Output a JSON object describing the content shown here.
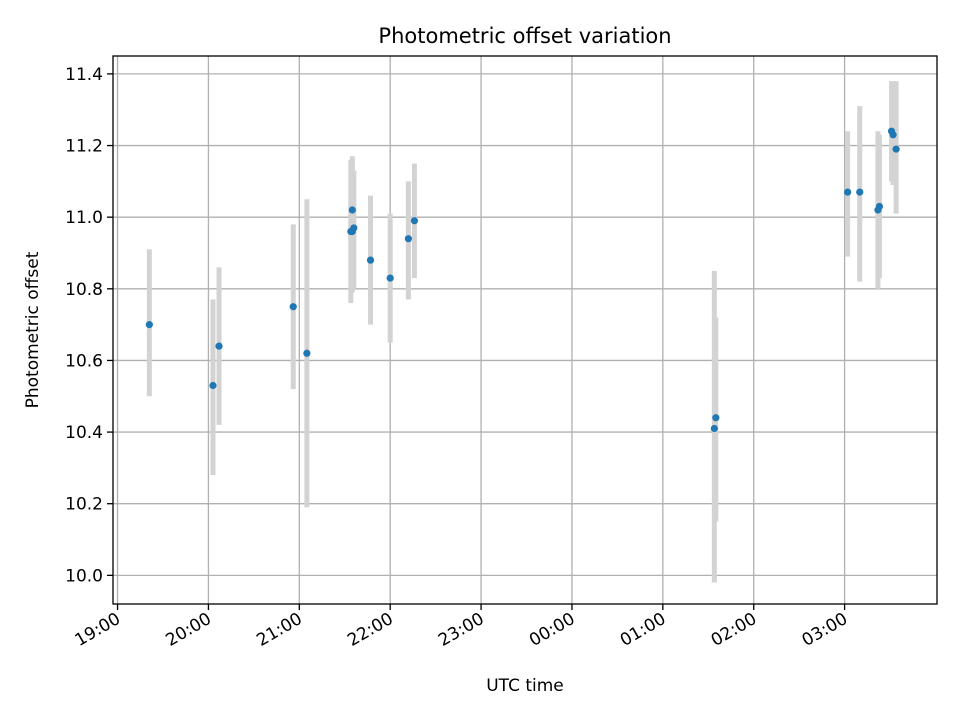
{
  "chart_data": {
    "type": "scatter",
    "title": "Photometric offset variation",
    "xlabel": "UTC time",
    "ylabel": "Photometric offset",
    "x_type": "time",
    "x_ticks": [
      "19:00",
      "20:00",
      "21:00",
      "22:00",
      "23:00",
      "00:00",
      "01:00",
      "02:00",
      "03:00"
    ],
    "y_ticks": [
      "10.0",
      "10.2",
      "10.4",
      "10.6",
      "10.8",
      "11.0",
      "11.2",
      "11.4"
    ],
    "ylim": [
      9.92,
      11.45
    ],
    "xlim": [
      "18:57",
      "04:01"
    ],
    "grid": true,
    "colors": {
      "points": "#1f77b4",
      "errorbars": "#d3d3d3",
      "grid": "#b0b0b0"
    },
    "points": [
      {
        "x": "19:21",
        "y": 10.7,
        "err_low": 10.5,
        "err_high": 10.91
      },
      {
        "x": "20:03",
        "y": 10.53,
        "err_low": 10.28,
        "err_high": 10.77
      },
      {
        "x": "20:07",
        "y": 10.64,
        "err_low": 10.42,
        "err_high": 10.86
      },
      {
        "x": "20:56",
        "y": 10.75,
        "err_low": 10.52,
        "err_high": 10.98
      },
      {
        "x": "21:05",
        "y": 10.62,
        "err_low": 10.19,
        "err_high": 11.05
      },
      {
        "x": "21:34",
        "y": 10.96,
        "err_low": 10.76,
        "err_high": 11.16
      },
      {
        "x": "21:35",
        "y": 10.96,
        "err_low": 10.79,
        "err_high": 11.14
      },
      {
        "x": "21:35",
        "y": 11.02,
        "err_low": 10.86,
        "err_high": 11.17
      },
      {
        "x": "21:36",
        "y": 10.97,
        "err_low": 10.8,
        "err_high": 11.13
      },
      {
        "x": "21:47",
        "y": 10.88,
        "err_low": 10.7,
        "err_high": 11.06
      },
      {
        "x": "22:00",
        "y": 10.83,
        "err_low": 10.65,
        "err_high": 11.01
      },
      {
        "x": "22:12",
        "y": 10.94,
        "err_low": 10.77,
        "err_high": 11.1
      },
      {
        "x": "22:16",
        "y": 10.99,
        "err_low": 10.83,
        "err_high": 11.15
      },
      {
        "x": "01:34",
        "y": 10.41,
        "err_low": 9.98,
        "err_high": 10.85
      },
      {
        "x": "01:35",
        "y": 10.44,
        "err_low": 10.15,
        "err_high": 10.72
      },
      {
        "x": "03:02",
        "y": 11.07,
        "err_low": 10.89,
        "err_high": 11.24
      },
      {
        "x": "03:10",
        "y": 11.07,
        "err_low": 10.82,
        "err_high": 11.31
      },
      {
        "x": "03:22",
        "y": 11.02,
        "err_low": 10.8,
        "err_high": 11.24
      },
      {
        "x": "03:23",
        "y": 11.03,
        "err_low": 10.83,
        "err_high": 11.23
      },
      {
        "x": "03:31",
        "y": 11.24,
        "err_low": 11.1,
        "err_high": 11.38
      },
      {
        "x": "03:32",
        "y": 11.23,
        "err_low": 11.09,
        "err_high": 11.37
      },
      {
        "x": "03:34",
        "y": 11.19,
        "err_low": 11.01,
        "err_high": 11.38
      }
    ]
  }
}
